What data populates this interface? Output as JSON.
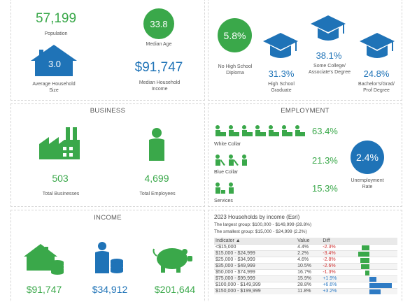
{
  "demographics": {
    "population": {
      "value": "57,199",
      "label": "Population"
    },
    "median_age": {
      "value": "33.8",
      "label": "Median Age"
    },
    "household_size": {
      "value": "3.0",
      "label": "Average Household Size"
    },
    "median_income": {
      "value": "$91,747",
      "label": "Median Household Income"
    }
  },
  "education": {
    "no_hs": {
      "value": "5.8%",
      "label": "No High School Diploma"
    },
    "hs_grad": {
      "value": "31.3%",
      "label": "High School Graduate"
    },
    "some_college": {
      "value": "38.1%",
      "label": "Some College/ Associate's Degree"
    },
    "bachelors": {
      "value": "24.8%",
      "label": "Bachelor's/Grad/ Prof Degree"
    }
  },
  "business": {
    "header": "BUSINESS",
    "total_businesses": {
      "value": "503",
      "label": "Total Businesses"
    },
    "total_employees": {
      "value": "4,699",
      "label": "Total Employees"
    }
  },
  "employment": {
    "header": "EMPLOYMENT",
    "white_collar": {
      "value": "63.4%",
      "label": "White Collar"
    },
    "blue_collar": {
      "value": "21.3%",
      "label": "Blue Collar"
    },
    "services": {
      "value": "15.3%",
      "label": "Services"
    },
    "unemployment": {
      "value": "2.4%",
      "label": "Unemployment Rate"
    }
  },
  "income": {
    "header": "INCOME",
    "median_household": "$91,747",
    "per_capita": "$34,912",
    "net_worth": "$201,644"
  },
  "households_table": {
    "title": "2023 Households by income (Esri)",
    "largest": "The largest group: $100,000 - $149,999 (28.8%)",
    "smallest": "The smallest group: $15,000 - $24,999 (2.2%)",
    "columns": [
      "Indicator ▲",
      "Value",
      "Diff"
    ],
    "rows": [
      {
        "indicator": "<$15,000",
        "value": "4.4%",
        "diff": "-2.3%",
        "diff_num": -2.3
      },
      {
        "indicator": "$15,000 - $24,999",
        "value": "2.2%",
        "diff": "-3.4%",
        "diff_num": -3.4
      },
      {
        "indicator": "$25,000 - $34,999",
        "value": "4.6%",
        "diff": "-2.8%",
        "diff_num": -2.8
      },
      {
        "indicator": "$35,000 - $49,999",
        "value": "10.5%",
        "diff": "-2.6%",
        "diff_num": -2.6
      },
      {
        "indicator": "$50,000 - $74,999",
        "value": "16.7%",
        "diff": "-1.3%",
        "diff_num": -1.3
      },
      {
        "indicator": "$75,000 - $99,999",
        "value": "15.9%",
        "diff": "+1.9%",
        "diff_num": 1.9
      },
      {
        "indicator": "$100,000 - $149,999",
        "value": "28.8%",
        "diff": "+6.6%",
        "diff_num": 6.6
      },
      {
        "indicator": "$150,000 - $199,999",
        "value": "11.8%",
        "diff": "+3.2%",
        "diff_num": 3.2
      }
    ]
  },
  "colors": {
    "green": "#3aa84a",
    "blue": "#1f73b7",
    "negative_bar": "#3aa84a",
    "positive_bar": "#2e7bc4"
  }
}
